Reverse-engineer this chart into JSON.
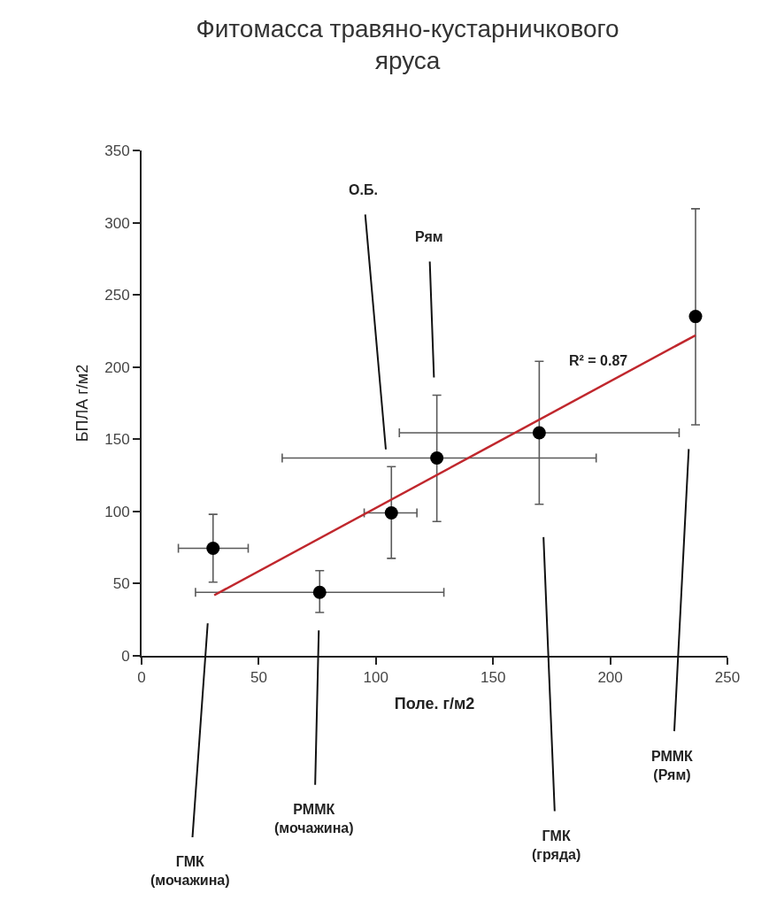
{
  "chart_data": {
    "type": "scatter",
    "title": "Фитомасса травяно-кустарничкового\nяруса",
    "xlabel": "Поле. г/м2",
    "ylabel": "БПЛА г/м2",
    "xlim": [
      0,
      250
    ],
    "xticks": [
      0,
      50,
      100,
      150,
      200,
      250
    ],
    "ylim": [
      0,
      350
    ],
    "yticks": [
      0,
      50,
      100,
      150,
      200,
      250,
      300,
      350
    ],
    "marker": "circle",
    "series": [
      {
        "color": "#000000",
        "x": [
          30.5,
          76,
          106.6,
          126,
          169.7,
          236.4
        ],
        "values": [
          74.5,
          44,
          99,
          137,
          154.5,
          235
        ],
        "errors": [
          [
            51,
            98
          ],
          [
            30,
            59
          ],
          [
            67.5,
            131
          ],
          [
            93,
            180.5
          ],
          [
            105,
            204
          ],
          [
            160,
            309.6
          ]
        ],
        "xerrors": [
          [
            15.7,
            45.5
          ],
          [
            23,
            129
          ],
          [
            95,
            117.5
          ],
          [
            60,
            194
          ],
          [
            110,
            229.4
          ],
          null
        ]
      },
      {
        "type": "line",
        "color": "#c0272d",
        "x": [
          31,
          236.4
        ],
        "values": [
          42,
          222
        ],
        "marker": "none",
        "line_style": "solid"
      }
    ],
    "annotations": [
      {
        "text": "R² = 0.87",
        "x": 195,
        "y": 186
      },
      {
        "text": "О.Б.",
        "x": 106.6,
        "y": 99
      },
      {
        "text": "Рям",
        "x": 126,
        "y": 137
      },
      {
        "text": "ГМК\n(мочажина)",
        "x": 30.5,
        "y": 74.5
      },
      {
        "text": "РММК\n(мочажина)",
        "x": 76,
        "y": 44
      },
      {
        "text": "ГМК\n(гряда)",
        "x": 169.7,
        "y": 154.5
      },
      {
        "text": "РММК\n(Рям)",
        "x": 236.4,
        "y": 235
      }
    ]
  }
}
